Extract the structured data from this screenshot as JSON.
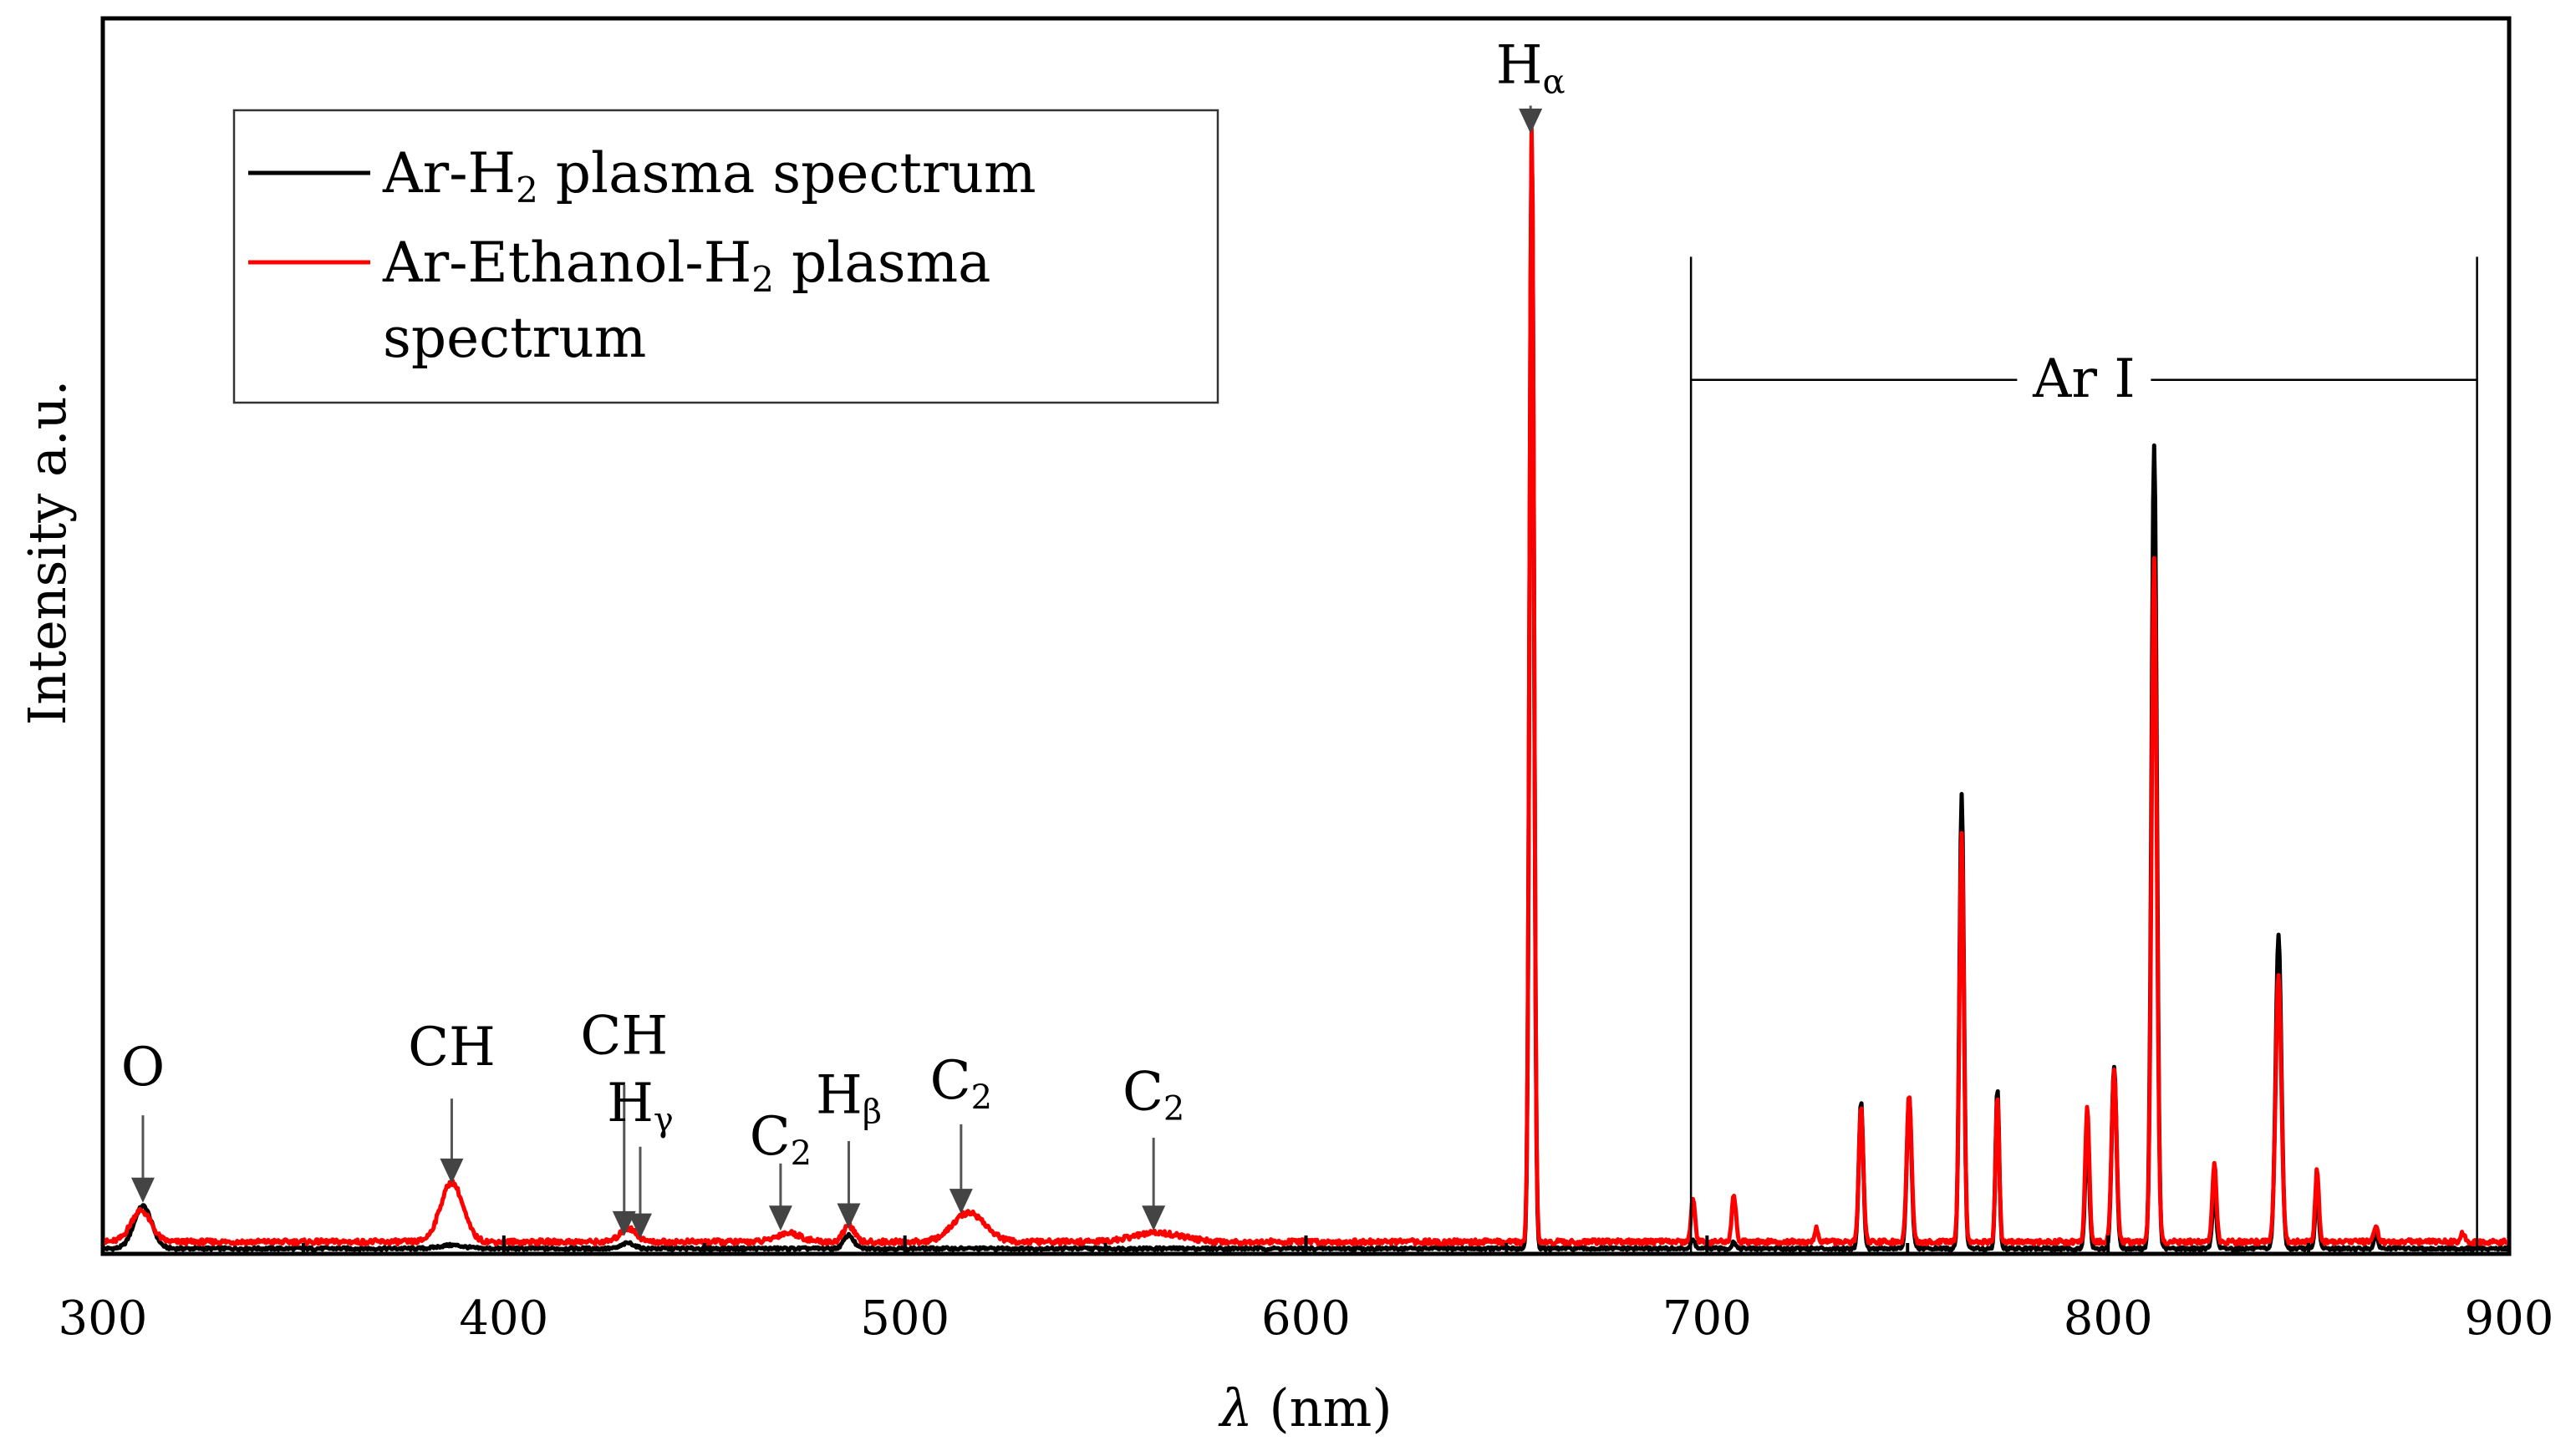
{
  "chart_data": {
    "type": "line",
    "title": "",
    "xlabel": "λ (nm)",
    "xlabel_symbol": "λ",
    "xlabel_unit": "(nm)",
    "ylabel": "Intensity a.u.",
    "xlim": [
      300,
      900
    ],
    "ylim": [
      0,
      100
    ],
    "x_ticks": [
      300,
      400,
      500,
      600,
      700,
      800,
      900
    ],
    "x_tick_labels": [
      "300",
      "400",
      "500",
      "600",
      "700",
      "800",
      "900"
    ],
    "y_tick_labels": [],
    "grid": false,
    "legend_position": "top-left",
    "series": [
      {
        "name": "Ar-H2 plasma spectrum",
        "color": "#000000",
        "baseline": 0.4,
        "peaks": [
          [
            310,
            3.8,
            2.2
          ],
          [
            387,
            0.3,
            3
          ],
          [
            431,
            0.5,
            1.5
          ],
          [
            486,
            1.2,
            1.2
          ],
          [
            656.3,
            99.5,
            0.55
          ],
          [
            696.5,
            0.8,
            0.5
          ],
          [
            706.7,
            0.6,
            0.5
          ],
          [
            738.4,
            13.2,
            0.55
          ],
          [
            750.4,
            13.5,
            0.6
          ],
          [
            763.5,
            40.5,
            0.55
          ],
          [
            772.4,
            14.5,
            0.45
          ],
          [
            794.8,
            10.5,
            0.5
          ],
          [
            801.5,
            16.3,
            0.6
          ],
          [
            811.5,
            71.8,
            0.65
          ],
          [
            826.5,
            5.0,
            0.5
          ],
          [
            842.5,
            28.0,
            0.7
          ],
          [
            852.1,
            5.5,
            0.45
          ],
          [
            866.8,
            1.2,
            0.5
          ]
        ]
      },
      {
        "name": "Ar-Ethanol-H2 plasma spectrum",
        "color": "#ff0000",
        "baseline": 1.0,
        "peaks": [
          [
            309.5,
            2.8,
            2.5
          ],
          [
            387,
            5.3,
            2.8
          ],
          [
            431,
            1.2,
            2
          ],
          [
            471,
            0.8,
            3
          ],
          [
            486,
            1.5,
            1.3
          ],
          [
            516,
            2.6,
            4
          ],
          [
            563,
            0.8,
            6
          ],
          [
            656.3,
            100.0,
            0.55
          ],
          [
            696.5,
            4.0,
            0.5
          ],
          [
            706.7,
            4.3,
            0.5
          ],
          [
            727.3,
            1.2,
            0.5
          ],
          [
            738.4,
            12.0,
            0.55
          ],
          [
            750.4,
            13.0,
            0.6
          ],
          [
            763.5,
            36.5,
            0.55
          ],
          [
            772.4,
            13.0,
            0.45
          ],
          [
            794.8,
            12.0,
            0.5
          ],
          [
            801.5,
            15.5,
            0.6
          ],
          [
            811.5,
            61.0,
            0.65
          ],
          [
            826.5,
            7.0,
            0.5
          ],
          [
            842.5,
            24.0,
            0.7
          ],
          [
            852.1,
            6.5,
            0.45
          ],
          [
            866.8,
            1.5,
            0.5
          ],
          [
            888.5,
            0.8,
            0.5
          ]
        ]
      }
    ],
    "legend": [
      {
        "label_main": "Ar-H",
        "label_sub": "2",
        "label_tail": " plasma spectrum",
        "color": "#000000"
      },
      {
        "label_main": "Ar-Ethanol-H",
        "label_sub": "2",
        "label_tail": " plasma",
        "label_line2": "spectrum",
        "color": "#ff0000"
      }
    ],
    "annotations": [
      {
        "label": "O",
        "sub": "",
        "x": 310,
        "label_y": 15.0,
        "arrow_top": 12.3,
        "arrow_tip": 4.5
      },
      {
        "label": "CH",
        "sub": "",
        "x": 387,
        "label_y": 16.8,
        "arrow_top": 13.8,
        "arrow_tip": 6.2
      },
      {
        "label": "CH",
        "sub": "",
        "x": 430,
        "label_y": 17.8,
        "arrow_top": 15.0,
        "arrow_tip": 1.5
      },
      {
        "label": "H",
        "sub": "γ",
        "x": 434,
        "label_y": 11.8,
        "arrow_top": 9.5,
        "arrow_tip": 1.3
      },
      {
        "label": "C",
        "sub": "2",
        "x": 469,
        "label_y": 8.8,
        "arrow_top": 8.0,
        "arrow_tip": 2.0
      },
      {
        "label": "H",
        "sub": "β",
        "x": 486,
        "label_y": 12.5,
        "arrow_top": 10.0,
        "arrow_tip": 2.2
      },
      {
        "label": "C",
        "sub": "2",
        "x": 514,
        "label_y": 13.8,
        "arrow_top": 11.5,
        "arrow_tip": 3.5
      },
      {
        "label": "C",
        "sub": "2",
        "x": 562,
        "label_y": 12.8,
        "arrow_top": 10.3,
        "arrow_tip": 2.0
      },
      {
        "label": "H",
        "sub": "α",
        "x": 656,
        "label_y": 104.5,
        "arrow_top": 102.5,
        "arrow_tip": 100.0
      }
    ],
    "region": {
      "label": "Ar I",
      "x_start": 696,
      "x_end": 892,
      "y_label": 78,
      "y_top": 89
    }
  }
}
